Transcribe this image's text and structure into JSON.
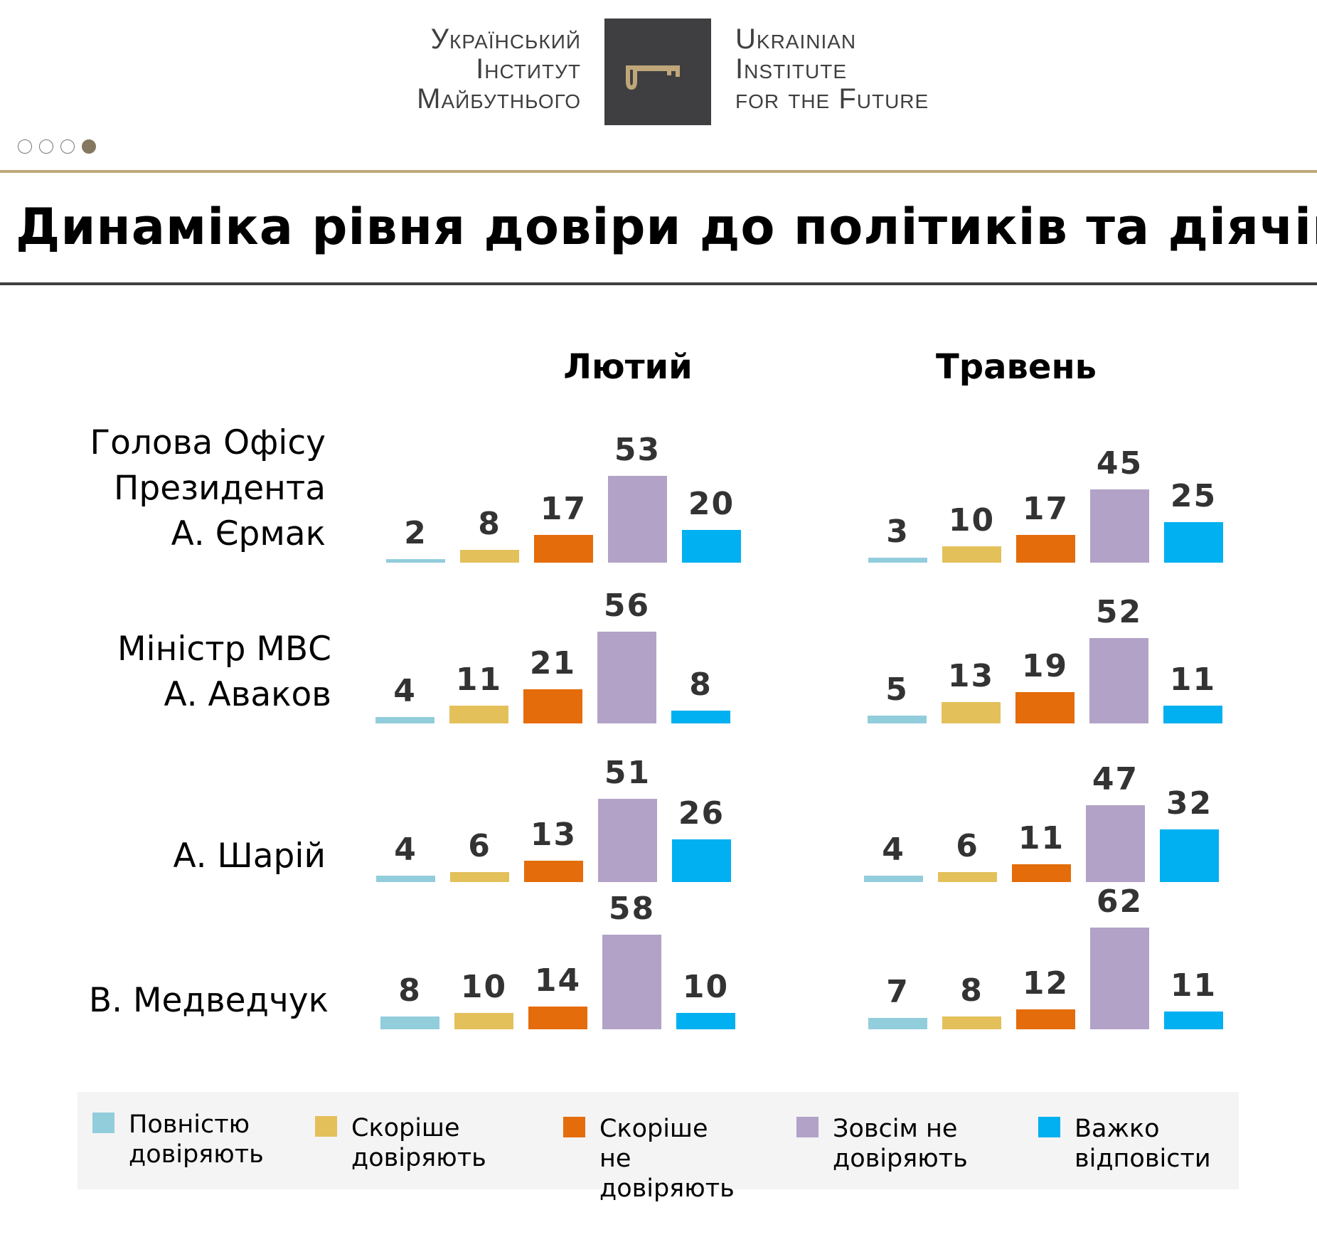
{
  "header": {
    "logo_ua": [
      "Український",
      "Інститут",
      "Майбутнього"
    ],
    "logo_en": [
      "Ukrainian",
      "Institute",
      "for the Future"
    ],
    "pagination": {
      "total": 4,
      "active": 4
    },
    "title": "Динаміка рівня довіри до політиків та діячів"
  },
  "chart_data": {
    "type": "bar",
    "title": "Динаміка рівня довіри до політиків та діячів",
    "periods": [
      "Лютий",
      "Травень"
    ],
    "legend": [
      {
        "label": "Повністю довіряють",
        "color": "#92cddc"
      },
      {
        "label": "Скоріше довіряють",
        "color": "#e3c05a"
      },
      {
        "label": "Скоріше не довіряють",
        "color": "#e46c0a"
      },
      {
        "label": "Зовсім не довіряють",
        "color": "#b2a2c7"
      },
      {
        "label": "Важко відповісти",
        "color": "#00b0f0"
      }
    ],
    "legend_placement": "bottom",
    "rows": [
      {
        "label": [
          "Голова Офісу",
          "Президента",
          "А. Єрмак"
        ],
        "values": [
          [
            2,
            8,
            17,
            53,
            20
          ],
          [
            3,
            10,
            17,
            45,
            25
          ]
        ]
      },
      {
        "label": [
          "Міністр МВС",
          "А. Аваков"
        ],
        "values": [
          [
            4,
            11,
            21,
            56,
            8
          ],
          [
            5,
            13,
            19,
            52,
            11
          ]
        ]
      },
      {
        "label": [
          "А. Шарій"
        ],
        "values": [
          [
            4,
            6,
            13,
            51,
            26
          ],
          [
            4,
            6,
            11,
            47,
            32
          ]
        ]
      },
      {
        "label": [
          "В. Медведчук"
        ],
        "values": [
          [
            8,
            10,
            14,
            58,
            10
          ],
          [
            7,
            8,
            12,
            62,
            11
          ]
        ]
      }
    ],
    "unit": "%"
  }
}
